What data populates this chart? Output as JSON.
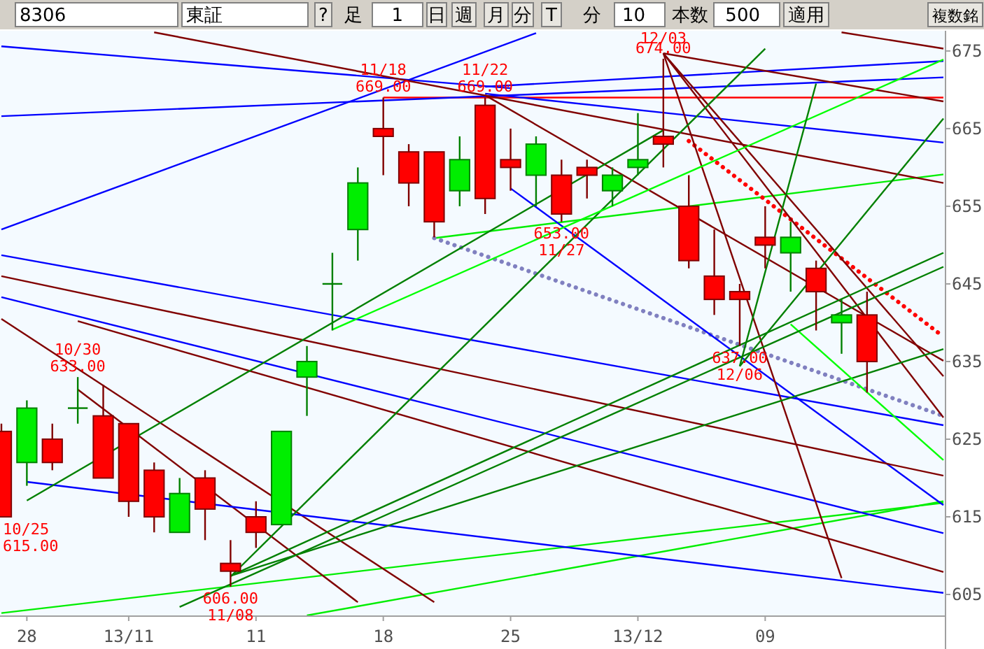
{
  "chart_data": {
    "type": "candlestick",
    "categories": [
      null,
      "28",
      null,
      null,
      null,
      "13/11",
      null,
      null,
      null,
      null,
      "11",
      null,
      null,
      null,
      null,
      "18",
      null,
      null,
      null,
      null,
      "25",
      null,
      null,
      null,
      null,
      "13/12",
      null,
      null,
      null,
      null,
      "09",
      null,
      null,
      null,
      null,
      null,
      null,
      null
    ],
    "ohlc": [
      [
        626,
        627,
        615,
        615
      ],
      [
        622,
        630,
        619,
        629
      ],
      [
        625,
        627,
        621,
        622
      ],
      [
        629,
        633,
        627,
        629
      ],
      [
        628,
        632,
        620,
        620
      ],
      [
        627,
        627,
        615,
        617
      ],
      [
        621,
        622,
        613,
        615
      ],
      [
        613,
        620,
        613,
        618
      ],
      [
        620,
        621,
        612,
        616
      ],
      [
        609,
        612,
        606,
        608
      ],
      [
        615,
        617,
        611,
        613
      ],
      [
        614,
        626,
        614,
        626
      ],
      [
        633,
        637,
        628,
        635
      ],
      [
        645,
        649,
        639,
        645
      ],
      [
        652,
        660,
        648,
        658
      ],
      [
        665,
        669,
        659,
        664
      ],
      [
        662,
        663,
        655,
        658
      ],
      [
        662,
        662,
        651,
        653
      ],
      [
        657,
        664,
        655,
        661
      ],
      [
        668,
        669,
        654,
        656
      ],
      [
        661,
        665,
        657,
        660
      ],
      [
        659,
        664,
        655,
        663
      ],
      [
        659,
        661,
        653,
        654
      ],
      [
        660,
        661,
        656,
        659
      ],
      [
        657,
        660,
        655,
        659
      ],
      [
        660,
        667,
        659,
        661
      ],
      [
        664,
        674,
        660,
        663
      ],
      [
        655,
        659,
        647,
        648
      ],
      [
        646,
        652,
        641,
        643
      ],
      [
        644,
        645,
        637,
        643
      ],
      [
        651,
        655,
        647,
        650
      ],
      [
        649,
        653,
        644,
        651
      ],
      [
        647,
        648,
        639,
        644
      ],
      [
        640,
        643,
        636,
        641
      ],
      [
        641,
        644,
        631,
        635
      ],
      null,
      null,
      null
    ],
    "colors": [
      "#ff0000",
      "#00ee00",
      "#ff0000",
      "#008000",
      "#ff0000",
      "#ff0000",
      "#ff0000",
      "#00ee00",
      "#ff0000",
      "#ff0000",
      "#ff0000",
      "#00ee00",
      "#00ee00",
      "#008000",
      "#00ee00",
      "#ff0000",
      "#ff0000",
      "#ff0000",
      "#00ee00",
      "#ff0000",
      "#ff0000",
      "#00ee00",
      "#ff0000",
      "#ff0000",
      "#00ee00",
      "#00ee00",
      "#ff0000",
      "#ff0000",
      "#ff0000",
      "#ff0000",
      "#ff0000",
      "#00ee00",
      "#ff0000",
      "#00ee00",
      "#ff0000",
      null,
      null,
      null
    ],
    "series": [
      {
        "type": "line",
        "color": "#00ee00",
        "values": [
          null,
          null,
          null,
          null,
          null,
          null,
          null,
          null,
          null,
          null,
          null,
          null,
          null,
          null,
          null,
          null,
          null,
          650.9,
          null,
          null,
          null,
          null,
          null,
          null,
          null,
          null,
          null,
          null,
          null,
          null,
          null,
          null,
          null,
          null,
          null,
          null,
          null,
          659.1
        ]
      },
      {
        "type": "line",
        "color": "#00ee00",
        "values": [
          602.6,
          null,
          null,
          null,
          null,
          null,
          null,
          null,
          null,
          null,
          null,
          null,
          null,
          null,
          null,
          null,
          null,
          null,
          null,
          null,
          null,
          null,
          null,
          null,
          null,
          null,
          null,
          null,
          null,
          null,
          null,
          null,
          null,
          null,
          null,
          null,
          null,
          616.8
        ]
      },
      {
        "type": "line",
        "color": "#00ee00",
        "values": [
          null,
          null,
          null,
          null,
          null,
          null,
          null,
          null,
          null,
          null,
          null,
          null,
          602.3,
          null,
          null,
          null,
          null,
          null,
          null,
          null,
          null,
          null,
          null,
          null,
          null,
          null,
          null,
          null,
          null,
          null,
          null,
          null,
          null,
          null,
          null,
          null,
          null,
          617.0
        ]
      },
      {
        "type": "line",
        "color": "#800000",
        "values": [
          640.5,
          null,
          null,
          null,
          null,
          null,
          null,
          null,
          null,
          null,
          null,
          null,
          null,
          null,
          null,
          null,
          null,
          604.0,
          null,
          null,
          null,
          null,
          null,
          null,
          null,
          null,
          null,
          null,
          null,
          null,
          null,
          null,
          null,
          null,
          null,
          null,
          null,
          null
        ]
      },
      {
        "type": "line",
        "color": "#800000",
        "values": [
          null,
          null,
          null,
          631.4,
          null,
          null,
          null,
          null,
          null,
          null,
          null,
          null,
          null,
          null,
          604.0,
          null,
          null,
          null,
          null,
          null,
          null,
          null,
          null,
          null,
          null,
          null,
          null,
          null,
          null,
          null,
          null,
          null,
          null,
          null,
          null,
          null,
          null,
          null
        ]
      },
      {
        "type": "line",
        "color": "#800000",
        "values": [
          null,
          null,
          null,
          null,
          null,
          null,
          null,
          null,
          null,
          null,
          null,
          null,
          null,
          null,
          null,
          null,
          null,
          null,
          null,
          null,
          null,
          null,
          null,
          null,
          null,
          null,
          null,
          null,
          null,
          null,
          null,
          null,
          null,
          677.4,
          null,
          null,
          null,
          675.3
        ]
      },
      {
        "type": "line",
        "color": "#8080c0",
        "line_style": "dotted",
        "values": [
          null,
          null,
          null,
          null,
          null,
          null,
          null,
          null,
          null,
          null,
          null,
          null,
          null,
          null,
          null,
          null,
          null,
          650.9,
          null,
          null,
          null,
          null,
          null,
          null,
          null,
          null,
          null,
          null,
          null,
          null,
          null,
          null,
          null,
          null,
          null,
          null,
          null,
          628.0
        ]
      },
      {
        "type": "line",
        "color": "#ff0000",
        "line_style": "dotted",
        "values": [
          null,
          null,
          null,
          null,
          null,
          null,
          null,
          null,
          null,
          null,
          null,
          null,
          null,
          null,
          null,
          null,
          null,
          null,
          null,
          null,
          null,
          null,
          null,
          null,
          null,
          null,
          null,
          663.4,
          null,
          null,
          null,
          null,
          null,
          null,
          null,
          null,
          null,
          638.2
        ]
      },
      {
        "type": "line",
        "color": "#ff0000",
        "values": [
          null,
          null,
          null,
          null,
          null,
          null,
          null,
          null,
          null,
          null,
          null,
          null,
          null,
          null,
          null,
          669,
          null,
          null,
          null,
          null,
          null,
          null,
          null,
          null,
          null,
          null,
          null,
          null,
          null,
          null,
          null,
          null,
          null,
          null,
          null,
          null,
          null,
          669
        ]
      },
      {
        "type": "line",
        "color": "#0000ff",
        "values": [
          675.6,
          null,
          null,
          null,
          null,
          null,
          null,
          null,
          null,
          null,
          null,
          null,
          null,
          null,
          null,
          null,
          null,
          null,
          null,
          null,
          670.2,
          null,
          null,
          null,
          null,
          null,
          null,
          null,
          null,
          null,
          null,
          null,
          null,
          null,
          null,
          null,
          null,
          null
        ]
      },
      {
        "type": "line",
        "color": "#0000ff",
        "values": [
          666.6,
          null,
          null,
          null,
          null,
          null,
          null,
          null,
          null,
          null,
          null,
          null,
          null,
          null,
          null,
          null,
          null,
          null,
          null,
          null,
          null,
          null,
          null,
          null,
          null,
          null,
          null,
          null,
          null,
          null,
          null,
          null,
          null,
          null,
          null,
          null,
          null,
          671.6
        ]
      },
      {
        "type": "line",
        "color": "#0000ff",
        "values": [
          652.0,
          null,
          null,
          null,
          null,
          null,
          null,
          null,
          null,
          null,
          null,
          null,
          null,
          null,
          null,
          null,
          null,
          null,
          null,
          null,
          null,
          677.3,
          null,
          null,
          null,
          null,
          null,
          null,
          null,
          null,
          null,
          null,
          null,
          null,
          null,
          null,
          null,
          null
        ]
      },
      {
        "type": "line",
        "color": "#0000ff",
        "values": [
          648.7,
          null,
          null,
          null,
          null,
          null,
          null,
          null,
          null,
          null,
          null,
          null,
          null,
          null,
          null,
          null,
          null,
          null,
          null,
          null,
          null,
          null,
          null,
          null,
          null,
          null,
          null,
          null,
          null,
          null,
          null,
          null,
          null,
          null,
          null,
          null,
          null,
          626.8
        ]
      },
      {
        "type": "line",
        "color": "#0000ff",
        "values": [
          null,
          619.5,
          null,
          null,
          null,
          null,
          null,
          null,
          null,
          null,
          null,
          null,
          null,
          null,
          null,
          null,
          null,
          null,
          null,
          null,
          null,
          null,
          null,
          null,
          null,
          null,
          null,
          null,
          null,
          null,
          null,
          null,
          null,
          null,
          null,
          null,
          null,
          605.2
        ]
      },
      {
        "type": "line",
        "color": "#0000ff",
        "values": [
          643.3,
          null,
          null,
          null,
          null,
          null,
          null,
          null,
          null,
          null,
          null,
          null,
          null,
          null,
          null,
          null,
          null,
          null,
          null,
          null,
          null,
          null,
          null,
          null,
          null,
          null,
          null,
          null,
          null,
          null,
          null,
          null,
          null,
          null,
          null,
          null,
          null,
          612.9
        ]
      },
      {
        "type": "line",
        "color": "#0000ff",
        "values": [
          null,
          null,
          null,
          null,
          null,
          null,
          null,
          null,
          null,
          null,
          null,
          null,
          null,
          null,
          null,
          null,
          null,
          null,
          null,
          null,
          657.3,
          null,
          null,
          null,
          null,
          null,
          null,
          null,
          null,
          null,
          null,
          null,
          null,
          null,
          null,
          null,
          null,
          616.5
        ]
      },
      {
        "type": "line",
        "color": "#0000ff",
        "values": [
          null,
          null,
          null,
          null,
          null,
          null,
          null,
          null,
          null,
          null,
          null,
          null,
          null,
          null,
          null,
          null,
          null,
          null,
          null,
          669.5,
          null,
          null,
          null,
          null,
          null,
          null,
          null,
          null,
          null,
          null,
          null,
          null,
          null,
          null,
          null,
          null,
          null,
          663.2
        ]
      },
      {
        "type": "line",
        "color": "#0000ff",
        "values": [
          null,
          null,
          null,
          null,
          null,
          null,
          null,
          null,
          null,
          null,
          null,
          null,
          null,
          null,
          null,
          null,
          null,
          null,
          null,
          670.4,
          null,
          null,
          null,
          null,
          null,
          null,
          null,
          null,
          null,
          null,
          null,
          null,
          null,
          null,
          null,
          null,
          null,
          673.7
        ]
      },
      {
        "type": "line",
        "color": "#800000",
        "values": [
          646.0,
          null,
          null,
          null,
          null,
          null,
          null,
          null,
          null,
          null,
          null,
          null,
          null,
          null,
          null,
          null,
          null,
          null,
          null,
          null,
          null,
          null,
          null,
          null,
          null,
          null,
          null,
          null,
          null,
          null,
          null,
          null,
          null,
          null,
          null,
          null,
          null,
          620.3
        ]
      },
      {
        "type": "line",
        "color": "#800000",
        "values": [
          null,
          null,
          null,
          640.2,
          null,
          null,
          null,
          null,
          null,
          null,
          null,
          null,
          null,
          null,
          null,
          null,
          null,
          null,
          null,
          null,
          null,
          null,
          null,
          null,
          null,
          null,
          null,
          null,
          null,
          null,
          null,
          null,
          null,
          null,
          null,
          null,
          null,
          607.9
        ]
      },
      {
        "type": "line",
        "color": "#800000",
        "values": [
          null,
          null,
          null,
          null,
          null,
          null,
          677.4,
          null,
          null,
          null,
          null,
          null,
          null,
          null,
          null,
          null,
          null,
          null,
          null,
          null,
          null,
          null,
          null,
          null,
          null,
          null,
          null,
          null,
          null,
          null,
          null,
          null,
          null,
          null,
          null,
          null,
          null,
          658.0
        ]
      },
      {
        "type": "line",
        "color": "#800000",
        "values": [
          null,
          null,
          null,
          null,
          null,
          null,
          null,
          null,
          null,
          null,
          null,
          null,
          null,
          null,
          null,
          null,
          null,
          null,
          null,
          null,
          null,
          null,
          null,
          null,
          null,
          null,
          674.7,
          null,
          null,
          null,
          null,
          null,
          null,
          607.1,
          null,
          null,
          null,
          null
        ]
      },
      {
        "type": "line",
        "color": "#800000",
        "values": [
          null,
          null,
          null,
          null,
          null,
          null,
          null,
          null,
          null,
          null,
          null,
          null,
          null,
          null,
          null,
          null,
          null,
          null,
          null,
          null,
          null,
          null,
          null,
          null,
          null,
          null,
          674.7,
          null,
          null,
          null,
          null,
          null,
          null,
          null,
          null,
          null,
          null,
          633.1
        ]
      },
      {
        "type": "line",
        "color": "#800000",
        "values": [
          null,
          null,
          null,
          null,
          null,
          null,
          null,
          null,
          null,
          null,
          null,
          null,
          null,
          null,
          null,
          null,
          null,
          null,
          null,
          null,
          null,
          null,
          null,
          null,
          null,
          null,
          674.7,
          null,
          null,
          null,
          null,
          null,
          null,
          null,
          null,
          null,
          null,
          627.8
        ]
      },
      {
        "type": "line",
        "color": "#800000",
        "values": [
          null,
          null,
          null,
          null,
          null,
          null,
          null,
          null,
          null,
          null,
          null,
          null,
          null,
          null,
          null,
          null,
          null,
          null,
          null,
          null,
          null,
          null,
          null,
          null,
          null,
          null,
          674.7,
          null,
          null,
          null,
          null,
          null,
          null,
          null,
          null,
          null,
          null,
          668.5
        ]
      },
      {
        "type": "line",
        "color": "#800000",
        "values": [
          null,
          null,
          null,
          null,
          null,
          null,
          null,
          null,
          null,
          null,
          null,
          null,
          null,
          null,
          null,
          null,
          null,
          null,
          null,
          669.3,
          null,
          null,
          null,
          null,
          null,
          null,
          null,
          null,
          null,
          null,
          null,
          null,
          null,
          null,
          null,
          null,
          null,
          635.1
        ]
      },
      {
        "type": "line",
        "color": "#008000",
        "values": [
          null,
          null,
          null,
          null,
          null,
          null,
          null,
          null,
          null,
          607.3,
          null,
          null,
          null,
          null,
          null,
          null,
          null,
          null,
          null,
          null,
          null,
          null,
          null,
          null,
          null,
          null,
          null,
          null,
          null,
          null,
          675.3,
          null,
          null,
          null,
          null,
          null,
          null,
          null
        ]
      },
      {
        "type": "line",
        "color": "#008000",
        "values": [
          null,
          null,
          null,
          null,
          null,
          null,
          null,
          null,
          null,
          607.4,
          null,
          null,
          null,
          null,
          null,
          null,
          null,
          null,
          null,
          null,
          null,
          null,
          null,
          null,
          null,
          null,
          null,
          null,
          null,
          null,
          null,
          null,
          null,
          null,
          null,
          null,
          null,
          636.6
        ]
      },
      {
        "type": "line",
        "color": "#008000",
        "values": [
          null,
          null,
          null,
          null,
          null,
          null,
          null,
          null,
          null,
          607.4,
          null,
          null,
          null,
          null,
          null,
          null,
          null,
          null,
          null,
          null,
          null,
          null,
          null,
          null,
          null,
          null,
          null,
          null,
          null,
          null,
          null,
          null,
          null,
          null,
          null,
          null,
          null,
          649.0
        ]
      },
      {
        "type": "line",
        "color": "#00ff00",
        "values": [
          null,
          null,
          null,
          null,
          null,
          null,
          null,
          null,
          null,
          null,
          null,
          null,
          null,
          639.1,
          null,
          null,
          null,
          null,
          null,
          null,
          null,
          null,
          null,
          null,
          null,
          null,
          null,
          null,
          null,
          null,
          null,
          null,
          null,
          null,
          null,
          null,
          null,
          673.9
        ]
      },
      {
        "type": "line",
        "color": "#008000",
        "values": [
          null,
          null,
          null,
          null,
          null,
          null,
          null,
          null,
          null,
          null,
          null,
          null,
          null,
          null,
          null,
          null,
          null,
          null,
          null,
          null,
          null,
          null,
          null,
          null,
          null,
          null,
          null,
          null,
          null,
          634.4,
          null,
          null,
          670.8,
          null,
          null,
          null,
          null,
          null
        ]
      },
      {
        "type": "line",
        "color": "#008000",
        "values": [
          null,
          null,
          null,
          null,
          null,
          null,
          null,
          null,
          null,
          null,
          null,
          null,
          null,
          null,
          null,
          null,
          null,
          null,
          null,
          null,
          null,
          null,
          null,
          null,
          null,
          null,
          null,
          null,
          null,
          634.4,
          null,
          null,
          null,
          null,
          null,
          null,
          null,
          666.3
        ]
      },
      {
        "type": "line",
        "color": "#00ff00",
        "values": [
          null,
          null,
          null,
          null,
          null,
          null,
          null,
          null,
          null,
          null,
          null,
          null,
          null,
          null,
          null,
          null,
          null,
          null,
          null,
          null,
          null,
          null,
          null,
          null,
          null,
          null,
          null,
          null,
          null,
          null,
          null,
          639.8,
          null,
          null,
          null,
          null,
          null,
          622.3
        ]
      },
      {
        "type": "line",
        "color": "#008000",
        "values": [
          null,
          null,
          null,
          null,
          null,
          null,
          null,
          603.4,
          null,
          null,
          null,
          null,
          null,
          null,
          null,
          null,
          null,
          null,
          null,
          null,
          null,
          null,
          null,
          null,
          null,
          null,
          null,
          null,
          null,
          null,
          null,
          null,
          null,
          null,
          null,
          null,
          null,
          647.2
        ]
      },
      {
        "type": "line",
        "color": "#008000",
        "values": [
          null,
          617.1,
          null,
          null,
          null,
          null,
          null,
          null,
          null,
          null,
          null,
          null,
          null,
          null,
          null,
          null,
          null,
          null,
          null,
          null,
          null,
          null,
          null,
          null,
          null,
          null,
          664.8,
          null,
          null,
          null,
          null,
          null,
          null,
          null,
          null,
          null,
          null,
          null
        ]
      }
    ],
    "ylim": [
      602.3,
      677.6
    ],
    "yticks": [
      605,
      615,
      625,
      635,
      645,
      655,
      665,
      675
    ],
    "annotations": [
      "8306",
      "東証",
      "?",
      "足",
      "1",
      "日",
      "週",
      "月",
      "分",
      "T",
      "分",
      "10",
      "本数",
      "500",
      "適用",
      "複数銘",
      "10/25\n615.00",
      {
        "text": "10/30\n633.00",
        "y": 633
      },
      {
        "text": "606.00\n11/08",
        "y": 606
      },
      {
        "text": "11/18\n669.00",
        "y": 669
      },
      {
        "text": "11/22\n669.00",
        "y": 669
      },
      {
        "text": "653.00\n11/27",
        "y": 653
      },
      {
        "text": "12/03\n674.00",
        "y": 674
      },
      {
        "text": "637.00\n12/06",
        "y": 637
      }
    ]
  }
}
